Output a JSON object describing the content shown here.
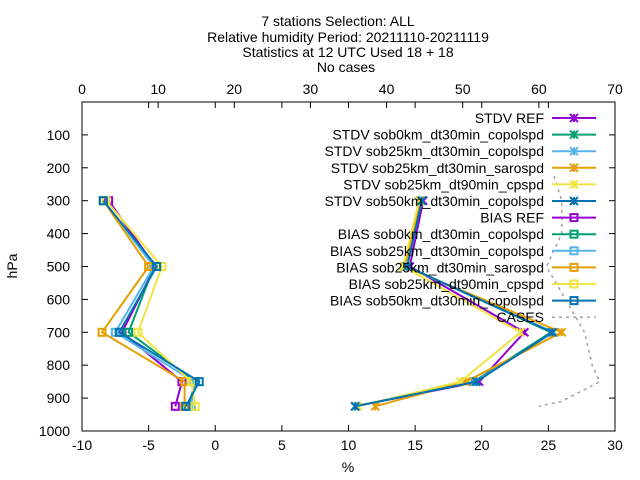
{
  "chart_data": {
    "type": "line",
    "title_lines": [
      "7 stations Selection: ALL",
      "Relative humidity  Period: 20211110-20211119",
      "Statistics at 12 UTC  Used 18 + 18",
      "No cases"
    ],
    "xlabel": "%",
    "ylabel": "hPa",
    "xlim": [
      -10,
      30
    ],
    "x_ticks": [
      "-10",
      "-5",
      "0",
      "5",
      "10",
      "15",
      "20",
      "25",
      "30"
    ],
    "x2lim": [
      0,
      70
    ],
    "x2_ticks": [
      "0",
      "10",
      "20",
      "30",
      "40",
      "50",
      "60",
      "70"
    ],
    "ylim": [
      1000,
      0
    ],
    "y_ticks": [
      "100",
      "200",
      "300",
      "400",
      "500",
      "600",
      "700",
      "800",
      "900",
      "1000"
    ],
    "grid": false,
    "legend_position": "top-right",
    "series": [
      {
        "label": "STDV REF",
        "color": "#9400d3",
        "marker": "x",
        "values": [
          [
            15.6,
            300
          ],
          [
            14.6,
            500
          ],
          [
            23.2,
            700
          ],
          [
            19.8,
            850
          ],
          [
            10.5,
            925
          ]
        ]
      },
      {
        "label": "STDV sob0km_dt30min_copolspd",
        "color": "#009e73",
        "marker": "x",
        "values": [
          [
            15.5,
            300
          ],
          [
            14.4,
            500
          ],
          [
            25.2,
            700
          ],
          [
            19.4,
            850
          ],
          [
            10.5,
            925
          ]
        ]
      },
      {
        "label": "STDV sob25km_dt30min_copolspd",
        "color": "#56b4e9",
        "marker": "x",
        "values": [
          [
            15.4,
            300
          ],
          [
            14.3,
            500
          ],
          [
            25.4,
            700
          ],
          [
            19.5,
            850
          ],
          [
            10.6,
            925
          ]
        ]
      },
      {
        "label": "STDV sob25km_dt30min_sarospd",
        "color": "#e69f00",
        "marker": "x",
        "values": [
          [
            15.4,
            300
          ],
          [
            14.2,
            500
          ],
          [
            26.0,
            700
          ],
          [
            18.8,
            850
          ],
          [
            12.0,
            925
          ]
        ]
      },
      {
        "label": "STDV sob25km_dt90min_cpspd",
        "color": "#f0e442",
        "marker": "x",
        "values": [
          [
            15.3,
            300
          ],
          [
            14.1,
            500
          ],
          [
            22.9,
            700
          ],
          [
            18.4,
            850
          ],
          [
            10.7,
            925
          ]
        ]
      },
      {
        "label": "STDV sob50km_dt30min_copolspd",
        "color": "#0072b2",
        "marker": "x",
        "values": [
          [
            15.5,
            300
          ],
          [
            14.4,
            500
          ],
          [
            25.3,
            700
          ],
          [
            19.6,
            850
          ],
          [
            10.5,
            925
          ]
        ]
      },
      {
        "label": "BIAS REF",
        "color": "#9400d3",
        "marker": "square",
        "values": [
          [
            -8.0,
            300
          ],
          [
            -4.5,
            500
          ],
          [
            -7.0,
            700
          ],
          [
            -2.5,
            850
          ],
          [
            -3.0,
            925
          ]
        ]
      },
      {
        "label": "BIAS sob0km_dt30min_copolspd",
        "color": "#009e73",
        "marker": "square",
        "values": [
          [
            -8.4,
            300
          ],
          [
            -4.6,
            500
          ],
          [
            -6.5,
            700
          ],
          [
            -1.5,
            850
          ],
          [
            -2.0,
            925
          ]
        ]
      },
      {
        "label": "BIAS sob25km_dt30min_copolspd",
        "color": "#56b4e9",
        "marker": "square",
        "values": [
          [
            -8.4,
            300
          ],
          [
            -4.6,
            500
          ],
          [
            -7.5,
            700
          ],
          [
            -1.6,
            850
          ],
          [
            -1.8,
            925
          ]
        ]
      },
      {
        "label": "BIAS sob25km_dt30min_sarospd",
        "color": "#e69f00",
        "marker": "square",
        "values": [
          [
            -8.4,
            300
          ],
          [
            -5.0,
            500
          ],
          [
            -8.5,
            700
          ],
          [
            -2.3,
            850
          ],
          [
            -2.3,
            925
          ]
        ]
      },
      {
        "label": "BIAS sob25km_dt90min_cpspd",
        "color": "#f0e442",
        "marker": "square",
        "values": [
          [
            -8.2,
            300
          ],
          [
            -4.0,
            500
          ],
          [
            -5.8,
            700
          ],
          [
            -1.8,
            850
          ],
          [
            -1.5,
            925
          ]
        ]
      },
      {
        "label": "BIAS sob50km_dt30min_copolspd",
        "color": "#0072b2",
        "marker": "square",
        "values": [
          [
            -8.4,
            300
          ],
          [
            -4.4,
            500
          ],
          [
            -7.2,
            700
          ],
          [
            -1.2,
            850
          ],
          [
            -2.2,
            925
          ]
        ]
      },
      {
        "label": "CASES",
        "color": "#a0a0a0",
        "marker": "none",
        "dashed": true,
        "axis": "x2",
        "values": [
          [
            62,
            225
          ],
          [
            63,
            300
          ],
          [
            63,
            400
          ],
          [
            61,
            500
          ],
          [
            66,
            700
          ],
          [
            67,
            800
          ],
          [
            68,
            850
          ],
          [
            63,
            910
          ],
          [
            60,
            925
          ]
        ]
      }
    ]
  }
}
